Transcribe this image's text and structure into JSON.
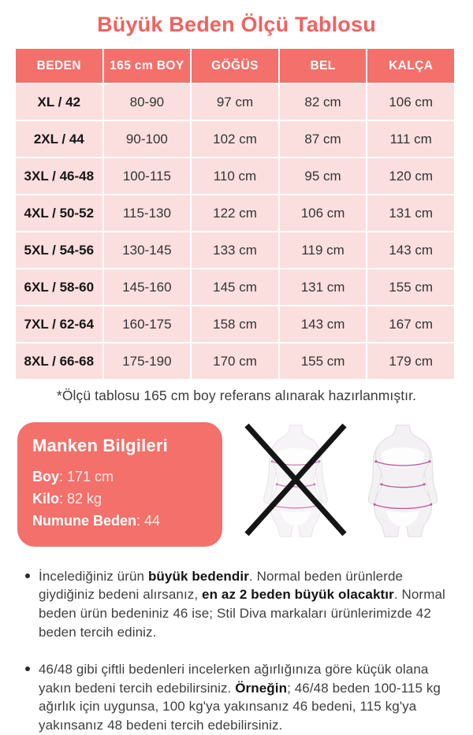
{
  "title": "Büyük Beden Ölçü Tablosu",
  "colors": {
    "accent_coral": "#f3706b",
    "title_red": "#ef625f",
    "row_pink": "#fadfde",
    "measure_line_pink": "#bf5b9f",
    "text_dark": "#3b3b3b"
  },
  "table": {
    "headers": [
      "BEDEN",
      "165 cm BOY",
      "GÖĞÜS",
      "BEL",
      "KALÇA"
    ],
    "rows": [
      [
        "XL / 42",
        "80-90",
        "97 cm",
        "82 cm",
        "106 cm"
      ],
      [
        "2XL / 44",
        "90-100",
        "102 cm",
        "87 cm",
        "111 cm"
      ],
      [
        "3XL / 46-48",
        "100-115",
        "110 cm",
        "95 cm",
        "120 cm"
      ],
      [
        "4XL / 50-52",
        "115-130",
        "122 cm",
        "106 cm",
        "131 cm"
      ],
      [
        "5XL / 54-56",
        "130-145",
        "133 cm",
        "119 cm",
        "143 cm"
      ],
      [
        "6XL / 58-60",
        "145-160",
        "145 cm",
        "131 cm",
        "155 cm"
      ],
      [
        "7XL / 62-64",
        "160-175",
        "158 cm",
        "143 cm",
        "167 cm"
      ],
      [
        "8XL / 66-68",
        "175-190",
        "170 cm",
        "155 cm",
        "179 cm"
      ]
    ]
  },
  "footnote": "*Ölçü tablosu 165 cm boy referans alınarak hazırlanmıştır.",
  "model_info": {
    "title": "Manken Bilgileri",
    "fields": [
      {
        "label": "Boy",
        "value": "171 cm"
      },
      {
        "label": "Kilo",
        "value": "82 kg"
      },
      {
        "label": "Numune Beden",
        "value": "44"
      }
    ]
  },
  "figures": {
    "wrong": "normal-beden-figur-carpi",
    "correct": "buyuk-beden-figur"
  },
  "notes": [
    {
      "segments": [
        {
          "t": "İncelediğiniz ürün "
        },
        {
          "t": "büyük bedendir",
          "b": true
        },
        {
          "t": ". Normal beden ürünlerde giydiğiniz bedeni alırsanız, "
        },
        {
          "t": "en az 2 beden büyük olacaktır",
          "b": true
        },
        {
          "t": ". Normal beden ürün bedeniniz 46 ise; Stil Diva markaları ürünlerimizde 42 beden tercih ediniz."
        }
      ]
    },
    {
      "segments": [
        {
          "t": "46/48 gibi çiftli bedenleri incelerken ağırlığınıza göre küçük olana yakın bedeni tercih edebilirsiniz. "
        },
        {
          "t": "Örneğin",
          "b": true
        },
        {
          "t": "; 46/48 beden 100-115 kg ağırlık için uygunsa, 100 kg'ya yakınsanız 46 bedeni, 115 kg'ya yakınsanız 48 bedeni tercih edebilirsiniz."
        }
      ]
    }
  ]
}
